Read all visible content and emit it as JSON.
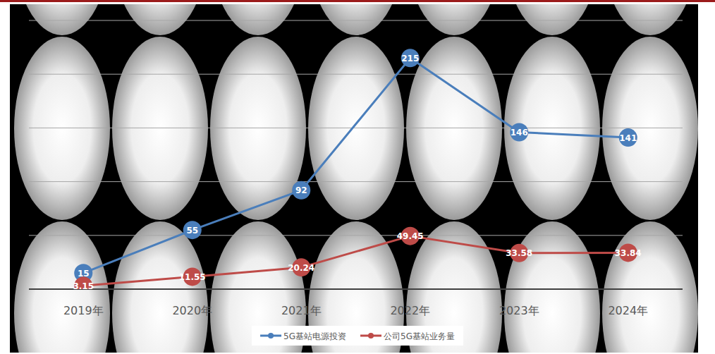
{
  "chart_data": {
    "type": "line",
    "categories": [
      "2019年",
      "2020年",
      "2021年",
      "2022年",
      "2023年",
      "2024年"
    ],
    "series": [
      {
        "name": "5G基站电源投资",
        "color": "#4a7ebb",
        "values": [
          15,
          55,
          92,
          215,
          146,
          141
        ]
      },
      {
        "name": "公司5G基站业务量",
        "color": "#be4b48",
        "values": [
          3.15,
          11.55,
          20.24,
          49.45,
          33.58,
          33.84
        ]
      }
    ],
    "ylim": [
      0,
      250
    ],
    "yticks": [
      0,
      50,
      100,
      150,
      200,
      250
    ],
    "grid": true,
    "legend": "bottom",
    "data_labels": true,
    "tick_labels": "x",
    "marker": "circle"
  }
}
